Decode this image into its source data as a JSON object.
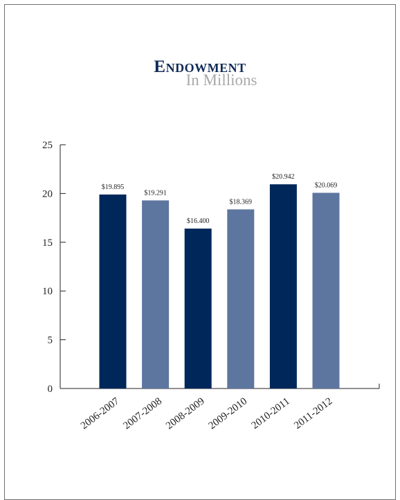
{
  "chart_data": {
    "type": "bar",
    "title": "Endowment",
    "subtitle": "In Millions",
    "categories": [
      "2006-2007",
      "2007-2008",
      "2008-2009",
      "2009-2010",
      "2010-2011",
      "2011-2012"
    ],
    "values": [
      19.895,
      19.291,
      16.4,
      18.369,
      20.942,
      20.069
    ],
    "value_labels": [
      "$19.895",
      "$19.291",
      "$16.400",
      "$18.369",
      "$20.942",
      "$20.069"
    ],
    "ylim": [
      0,
      25
    ],
    "yticks": [
      0,
      5,
      10,
      15,
      20,
      25
    ],
    "xlabel": "",
    "ylabel": "",
    "grid": false,
    "bar_colors": [
      "#00275a",
      "#5d76a0",
      "#00275a",
      "#5d76a0",
      "#00275a",
      "#5d76a0"
    ]
  }
}
